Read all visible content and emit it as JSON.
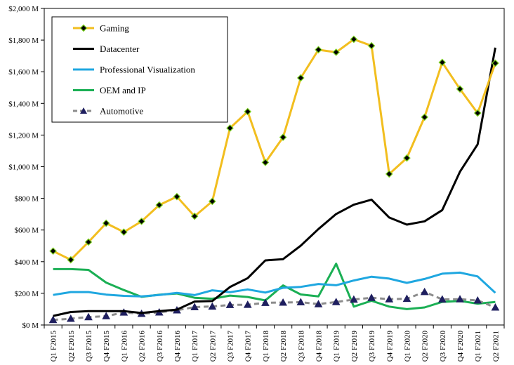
{
  "chart_data": {
    "type": "line",
    "title": "",
    "xlabel": "",
    "ylabel": "",
    "ylim": [
      0,
      2000
    ],
    "y_ticks": [
      0,
      200,
      400,
      600,
      800,
      1000,
      1200,
      1400,
      1600,
      1800,
      2000
    ],
    "y_tick_labels": [
      "$0 M",
      "$200 M",
      "$400 M",
      "$600 M",
      "$800 M",
      "$1,000 M",
      "$1,200 M",
      "$1,400 M",
      "$1,600 M",
      "$1,800 M",
      "$2,000 M"
    ],
    "grid": false,
    "legend_position": "top-left",
    "categories": [
      "Q1 F2015",
      "Q2 F2015",
      "Q3 F2015",
      "Q4 F2015",
      "Q1 F2016",
      "Q2 F2016",
      "Q3 F2016",
      "Q4 F2016",
      "Q1 F2017",
      "Q2 F2017",
      "Q3 F2017",
      "Q4 F2017",
      "Q1 F2018",
      "Q2 F2018",
      "Q3 F2018",
      "Q4 F2018",
      "Q1 F2019",
      "Q2 F2019",
      "Q3 F2019",
      "Q4 F2019",
      "Q1 F2020",
      "Q2 F2020",
      "Q3 F2020",
      "Q4 F2020",
      "Q1 F2021",
      "Q2 F2021"
    ],
    "series": [
      {
        "name": "Gaming",
        "color": "#F2BE1F",
        "marker": "diamond",
        "dashed": false,
        "values": [
          467,
          412,
          524,
          643,
          587,
          655,
          758,
          811,
          687,
          781,
          1244,
          1348,
          1027,
          1186,
          1561,
          1739,
          1723,
          1805,
          1764,
          954,
          1055,
          1313,
          1659,
          1491,
          1339,
          1654
        ]
      },
      {
        "name": "Datacenter",
        "color": "#000000",
        "marker": "none",
        "dashed": false,
        "values": [
          57,
          82,
          88,
          88,
          88,
          76,
          88,
          97,
          148,
          151,
          240,
          296,
          408,
          416,
          501,
          606,
          701,
          760,
          792,
          679,
          634,
          655,
          726,
          968,
          1141,
          1752
        ]
      },
      {
        "name": "Professional Visualization",
        "color": "#1FA7E0",
        "marker": "none",
        "dashed": false,
        "values": [
          190,
          208,
          208,
          192,
          184,
          181,
          190,
          203,
          189,
          219,
          207,
          225,
          205,
          235,
          241,
          259,
          251,
          281,
          305,
          293,
          266,
          291,
          324,
          331,
          307,
          203
        ]
      },
      {
        "name": "OEM and IP",
        "color": "#1AAF54",
        "marker": "none",
        "dashed": false,
        "values": [
          353,
          353,
          348,
          268,
          221,
          178,
          191,
          199,
          172,
          166,
          186,
          177,
          155,
          250,
          193,
          181,
          387,
          116,
          153,
          116,
          100,
          111,
          146,
          152,
          135,
          145
        ]
      },
      {
        "name": "Automotive",
        "color": "#8C8C8C",
        "marker": "triangle",
        "dashed": true,
        "values": [
          32,
          40,
          50,
          56,
          79,
          71,
          80,
          93,
          113,
          117,
          127,
          128,
          140,
          142,
          144,
          132,
          145,
          161,
          172,
          163,
          166,
          209,
          162,
          163,
          155,
          111
        ]
      }
    ]
  }
}
